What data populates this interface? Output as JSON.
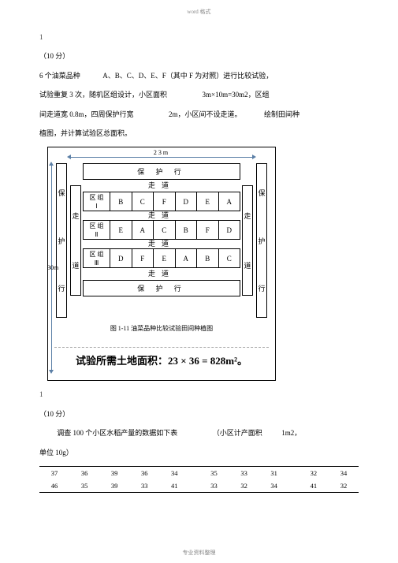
{
  "header": "word 格式",
  "footer": "专业资料整理",
  "q1": {
    "num": "1",
    "points": "（10 分）",
    "text1_a": "6 个油菜品种",
    "text1_b": "A、B、C、D、E、F（其中 F 为对照）进行比较试验，",
    "text2_a": "试验重复 3 次，随机区组设计，小区面积",
    "text2_b": "3m×10m=30m2，区组",
    "text3_a": "间走道宽 0.8m，四周保护行宽",
    "text3_b": "2m，小区间不设走道。",
    "text3_c": "绘制田间种",
    "text4": "植图，并计算试验区总面积。"
  },
  "diagram": {
    "width_label": "23m",
    "height_label": "30m",
    "protect": "保 护 行",
    "walk": "走道",
    "side_bao": "保",
    "side_hu": "护",
    "side_xing": "行",
    "side_zou": "走",
    "side_dao": "道",
    "zu_label": "区 组",
    "groups": [
      {
        "roman": "Ⅰ",
        "cells": [
          "B",
          "C",
          "F",
          "D",
          "E",
          "A"
        ]
      },
      {
        "roman": "Ⅱ",
        "cells": [
          "E",
          "A",
          "C",
          "B",
          "F",
          "D"
        ]
      },
      {
        "roman": "Ⅲ",
        "cells": [
          "D",
          "F",
          "E",
          "A",
          "B",
          "C"
        ]
      }
    ],
    "caption": "图 1-11  油菜品种比较试验田间种植图",
    "area": "试验所需土地面积：23 × 36 = 828m²。"
  },
  "q2": {
    "num": "1",
    "points": "（10 分）",
    "text1_a": "调查 100 个小区水稻产量的数据如下表",
    "text1_b": "（小区计产面积",
    "text1_c": "1m2，",
    "text2": "单位 10g）",
    "table": {
      "row1": [
        "37",
        "36",
        "39",
        "36",
        "34",
        "  ",
        "35",
        "33",
        "31",
        "  ",
        "32",
        "34"
      ],
      "row2": [
        "46",
        "35",
        "39",
        "33",
        "41",
        "  ",
        "33",
        "32",
        "34",
        "  ",
        "41",
        "32"
      ]
    }
  }
}
